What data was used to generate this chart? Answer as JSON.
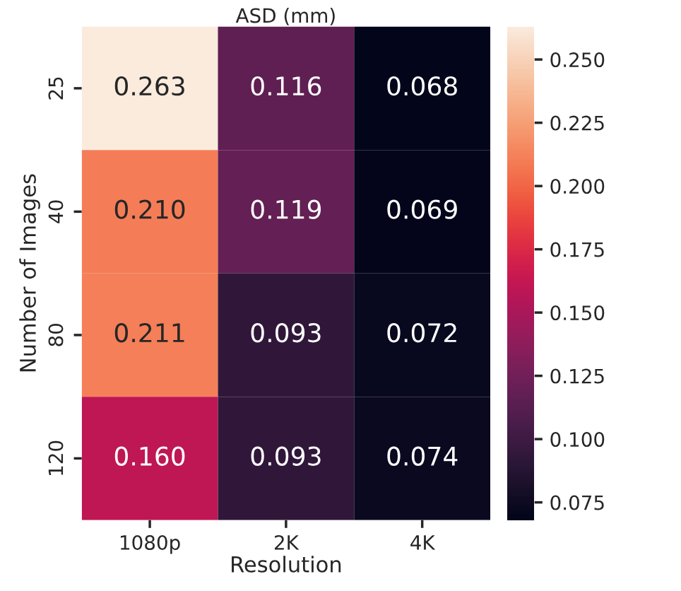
{
  "chart_data": {
    "type": "heatmap",
    "title": "ASD (mm)",
    "xlabel": "Resolution",
    "ylabel": "Number of Images",
    "categories": [
      "1080p",
      "2K",
      "4K"
    ],
    "y_categories": [
      "25",
      "40",
      "80",
      "120"
    ],
    "cells": [
      [
        0.263,
        0.116,
        0.068
      ],
      [
        0.21,
        0.119,
        0.069
      ],
      [
        0.211,
        0.093,
        0.072
      ],
      [
        0.16,
        0.093,
        0.074
      ]
    ],
    "cell_labels": [
      [
        "0.263",
        "0.116",
        "0.068"
      ],
      [
        "0.210",
        "0.119",
        "0.069"
      ],
      [
        "0.211",
        "0.093",
        "0.072"
      ],
      [
        "0.160",
        "0.093",
        "0.074"
      ]
    ],
    "cticks": [
      "0.075",
      "0.100",
      "0.125",
      "0.150",
      "0.175",
      "0.200",
      "0.225",
      "0.250"
    ]
  }
}
